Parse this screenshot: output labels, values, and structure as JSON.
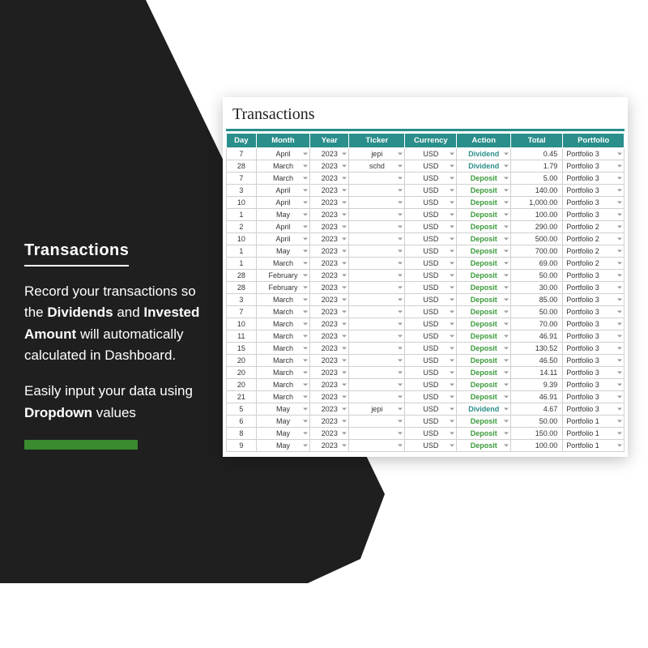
{
  "sidebar": {
    "heading": "Transactions",
    "para1_parts": [
      "Record your transactions so the ",
      "Dividends",
      " and ",
      "Invested Amount",
      " will automatically calculated in Dashboard."
    ],
    "para2_parts": [
      "Easily input your data using ",
      "Dropdown",
      " values"
    ]
  },
  "sheet": {
    "title": "Transactions",
    "columns": [
      "Day",
      "Month",
      "Year",
      "Ticker",
      "Currency",
      "Action",
      "Total",
      "Portfolio"
    ],
    "header_bg": "#2a8e8a",
    "header_fg": "#ffffff",
    "action_colors": {
      "Dividend": "#2a8e8a",
      "Deposit": "#3a9a3a"
    },
    "rows": [
      {
        "day": "7",
        "month": "April",
        "year": "2023",
        "ticker": "jepi",
        "currency": "USD",
        "action": "Dividend",
        "total": "0.45",
        "portfolio": "Portfolio 3"
      },
      {
        "day": "28",
        "month": "March",
        "year": "2023",
        "ticker": "schd",
        "currency": "USD",
        "action": "Dividend",
        "total": "1.79",
        "portfolio": "Portfolio 3"
      },
      {
        "day": "7",
        "month": "March",
        "year": "2023",
        "ticker": "",
        "currency": "USD",
        "action": "Deposit",
        "total": "5.00",
        "portfolio": "Portfolio 3"
      },
      {
        "day": "3",
        "month": "April",
        "year": "2023",
        "ticker": "",
        "currency": "USD",
        "action": "Deposit",
        "total": "140.00",
        "portfolio": "Portfolio 3"
      },
      {
        "day": "10",
        "month": "April",
        "year": "2023",
        "ticker": "",
        "currency": "USD",
        "action": "Deposit",
        "total": "1,000.00",
        "portfolio": "Portfolio 3"
      },
      {
        "day": "1",
        "month": "May",
        "year": "2023",
        "ticker": "",
        "currency": "USD",
        "action": "Deposit",
        "total": "100.00",
        "portfolio": "Portfolio 3"
      },
      {
        "day": "2",
        "month": "April",
        "year": "2023",
        "ticker": "",
        "currency": "USD",
        "action": "Deposit",
        "total": "290.00",
        "portfolio": "Portfolio 2"
      },
      {
        "day": "10",
        "month": "April",
        "year": "2023",
        "ticker": "",
        "currency": "USD",
        "action": "Deposit",
        "total": "500.00",
        "portfolio": "Portfolio 2"
      },
      {
        "day": "1",
        "month": "May",
        "year": "2023",
        "ticker": "",
        "currency": "USD",
        "action": "Deposit",
        "total": "700.00",
        "portfolio": "Portfolio 2"
      },
      {
        "day": "1",
        "month": "March",
        "year": "2023",
        "ticker": "",
        "currency": "USD",
        "action": "Deposit",
        "total": "69.00",
        "portfolio": "Portfolio 2"
      },
      {
        "day": "28",
        "month": "February",
        "year": "2023",
        "ticker": "",
        "currency": "USD",
        "action": "Deposit",
        "total": "50.00",
        "portfolio": "Portfolio 3"
      },
      {
        "day": "28",
        "month": "February",
        "year": "2023",
        "ticker": "",
        "currency": "USD",
        "action": "Deposit",
        "total": "30.00",
        "portfolio": "Portfolio 3"
      },
      {
        "day": "3",
        "month": "March",
        "year": "2023",
        "ticker": "",
        "currency": "USD",
        "action": "Deposit",
        "total": "85.00",
        "portfolio": "Portfolio 3"
      },
      {
        "day": "7",
        "month": "March",
        "year": "2023",
        "ticker": "",
        "currency": "USD",
        "action": "Deposit",
        "total": "50.00",
        "portfolio": "Portfolio 3"
      },
      {
        "day": "10",
        "month": "March",
        "year": "2023",
        "ticker": "",
        "currency": "USD",
        "action": "Deposit",
        "total": "70.00",
        "portfolio": "Portfolio 3"
      },
      {
        "day": "11",
        "month": "March",
        "year": "2023",
        "ticker": "",
        "currency": "USD",
        "action": "Deposit",
        "total": "46.91",
        "portfolio": "Portfolio 3"
      },
      {
        "day": "15",
        "month": "March",
        "year": "2023",
        "ticker": "",
        "currency": "USD",
        "action": "Deposit",
        "total": "130.52",
        "portfolio": "Portfolio 3"
      },
      {
        "day": "20",
        "month": "March",
        "year": "2023",
        "ticker": "",
        "currency": "USD",
        "action": "Deposit",
        "total": "46.50",
        "portfolio": "Portfolio 3"
      },
      {
        "day": "20",
        "month": "March",
        "year": "2023",
        "ticker": "",
        "currency": "USD",
        "action": "Deposit",
        "total": "14.11",
        "portfolio": "Portfolio 3"
      },
      {
        "day": "20",
        "month": "March",
        "year": "2023",
        "ticker": "",
        "currency": "USD",
        "action": "Deposit",
        "total": "9.39",
        "portfolio": "Portfolio 3"
      },
      {
        "day": "21",
        "month": "March",
        "year": "2023",
        "ticker": "",
        "currency": "USD",
        "action": "Deposit",
        "total": "46.91",
        "portfolio": "Portfolio 3"
      },
      {
        "day": "5",
        "month": "May",
        "year": "2023",
        "ticker": "jepi",
        "currency": "USD",
        "action": "Dividend",
        "total": "4.67",
        "portfolio": "Portfolio 3"
      },
      {
        "day": "6",
        "month": "May",
        "year": "2023",
        "ticker": "",
        "currency": "USD",
        "action": "Deposit",
        "total": "50.00",
        "portfolio": "Portfolio 1"
      },
      {
        "day": "8",
        "month": "May",
        "year": "2023",
        "ticker": "",
        "currency": "USD",
        "action": "Deposit",
        "total": "150.00",
        "portfolio": "Portfolio 1"
      },
      {
        "day": "9",
        "month": "May",
        "year": "2023",
        "ticker": "",
        "currency": "USD",
        "action": "Deposit",
        "total": "100.00",
        "portfolio": "Portfolio 1"
      }
    ]
  },
  "colors": {
    "dark_shape": "#1f1f1f",
    "accent_bar": "#3a8a2f",
    "teal": "#2a8e8a",
    "page_bg": "#ffffff"
  }
}
